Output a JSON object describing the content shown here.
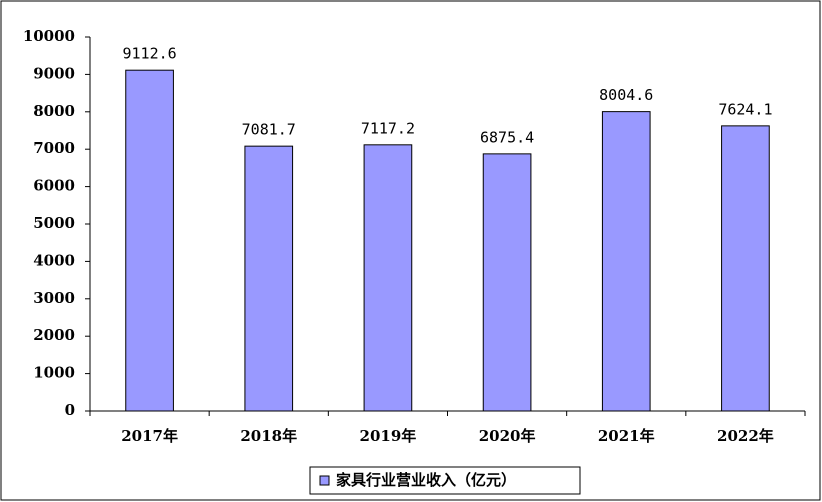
{
  "chart_data": {
    "type": "bar",
    "categories": [
      "2017年",
      "2018年",
      "2019年",
      "2020年",
      "2021年",
      "2022年"
    ],
    "series": [
      {
        "name": "家具行业营业收入（亿元）",
        "color": "#9999ff",
        "values": [
          9112.6,
          7081.7,
          7117.2,
          6875.4,
          8004.6,
          7624.1
        ]
      }
    ],
    "ylim": [
      0,
      10000
    ],
    "yticks": [
      0,
      1000,
      2000,
      3000,
      4000,
      5000,
      6000,
      7000,
      8000,
      9000,
      10000
    ],
    "legend": "bottom"
  }
}
